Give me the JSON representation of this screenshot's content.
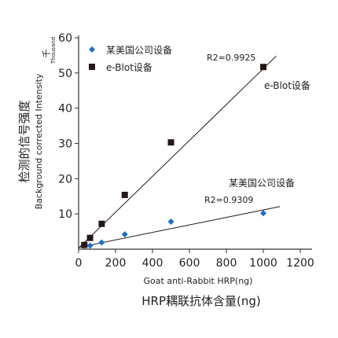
{
  "chart_data": {
    "type": "scatter",
    "ylabel_cn": "检测的信号强度",
    "ylabel_en": "Background corrected Intensity",
    "y_unit_cn": "千",
    "y_unit_en": "Thousand",
    "xlabel_en": "Goat anti-Rabbit HRP(ng)",
    "xlabel_cn": "HRP耦联抗体含量(ng)",
    "xlim": [
      0,
      1200
    ],
    "ylim": [
      0,
      60
    ],
    "xticks": [
      0,
      200,
      400,
      600,
      800,
      1000,
      1200
    ],
    "yticks": [
      10,
      20,
      30,
      40,
      50,
      60
    ],
    "legend": [
      {
        "label": "某美国公司设备",
        "marker": "diamond",
        "color": "#1e6ec6"
      },
      {
        "label": "e-Blot设备",
        "marker": "square",
        "color": "#231815"
      }
    ],
    "series": [
      {
        "name": "某美国公司设备",
        "marker": "diamond",
        "color": "#1e6ec6",
        "x": [
          31,
          62,
          125,
          250,
          500,
          1000
        ],
        "y": [
          1.1,
          1.0,
          1.9,
          4.2,
          7.8,
          10.2
        ],
        "trendline": {
          "x": [
            0,
            1090
          ],
          "y": [
            0.5,
            12.1
          ]
        },
        "r2_label": "R2=0.9309",
        "annotation": "某美国公司设备"
      },
      {
        "name": "e-Blot设备",
        "marker": "square",
        "color": "#231815",
        "x": [
          31,
          62,
          125,
          250,
          500,
          1000
        ],
        "y": [
          1.2,
          3.2,
          7.2,
          15.4,
          30.3,
          51.7
        ],
        "trendline": {
          "x": [
            0,
            1070
          ],
          "y": [
            0.3,
            54.8
          ]
        },
        "r2_label": "R2=0.9925",
        "annotation": "e-Blot设备"
      }
    ]
  }
}
